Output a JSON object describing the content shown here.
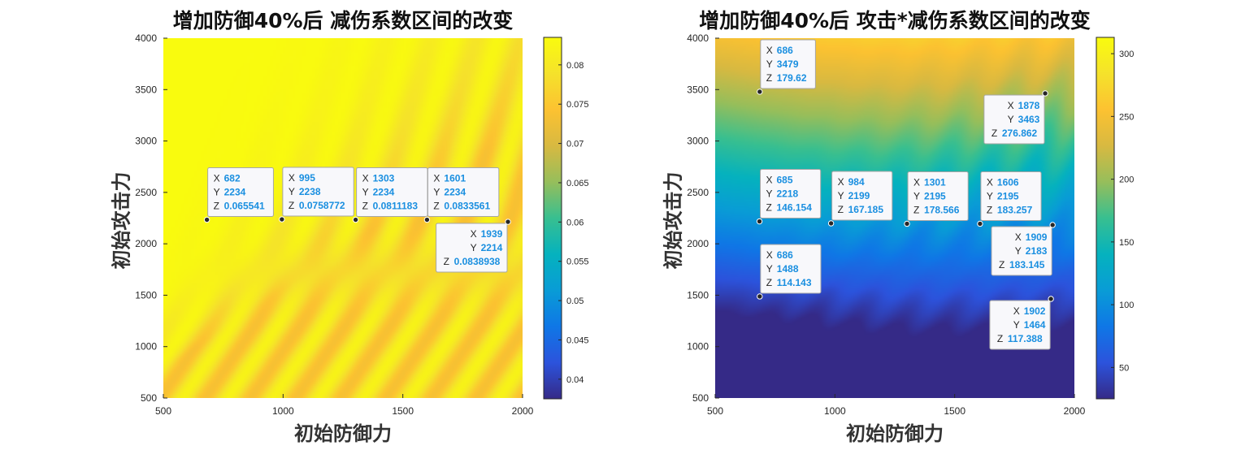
{
  "chart_data": [
    {
      "type": "heatmap",
      "title": "增加防御40%后 减伤系数区间的改变",
      "xlabel": "初始防御力",
      "ylabel": "初始攻击力",
      "xlim": [
        500,
        2000
      ],
      "ylim": [
        500,
        4000
      ],
      "xticks": [
        "500",
        "1000",
        "1500",
        "2000"
      ],
      "yticks": [
        "500",
        "1000",
        "1500",
        "2000",
        "2500",
        "3000",
        "3500",
        "4000"
      ],
      "colorbar": {
        "min": 0.0375,
        "max": 0.0835,
        "ticks": [
          "0.04",
          "0.045",
          "0.05",
          "0.055",
          "0.06",
          "0.065",
          "0.07",
          "0.075",
          "0.08"
        ]
      },
      "datatips": [
        {
          "x": "682",
          "y": "2234",
          "z": "0.065541",
          "tip_side": "right"
        },
        {
          "x": "995",
          "y": "2238",
          "z": "0.0758772",
          "tip_side": "right"
        },
        {
          "x": "1303",
          "y": "2234",
          "z": "0.0811183",
          "tip_side": "right"
        },
        {
          "x": "1601",
          "y": "2234",
          "z": "0.0833561",
          "tip_side": "right"
        },
        {
          "x": "1939",
          "y": "2214",
          "z": "0.0838938",
          "tip_side": "left"
        }
      ]
    },
    {
      "type": "heatmap",
      "title": "增加防御40%后 攻击*减伤系数区间的改变",
      "xlabel": "初始防御力",
      "ylabel": "初始攻击力",
      "xlim": [
        500,
        2000
      ],
      "ylim": [
        500,
        4000
      ],
      "xticks": [
        "500",
        "1000",
        "1500",
        "2000"
      ],
      "yticks": [
        "500",
        "1000",
        "1500",
        "2000",
        "2500",
        "3000",
        "3500",
        "4000"
      ],
      "colorbar": {
        "min": 25,
        "max": 313,
        "ticks": [
          "50",
          "100",
          "150",
          "200",
          "250",
          "300"
        ]
      },
      "datatips": [
        {
          "x": "686",
          "y": "3479",
          "z": "179.62",
          "tip_side": "right"
        },
        {
          "x": "1878",
          "y": "3463",
          "z": "276.862",
          "tip_side": "left"
        },
        {
          "x": "685",
          "y": "2218",
          "z": "146.154",
          "tip_side": "right"
        },
        {
          "x": "984",
          "y": "2199",
          "z": "167.185",
          "tip_side": "right"
        },
        {
          "x": "1301",
          "y": "2195",
          "z": "178.566",
          "tip_side": "right"
        },
        {
          "x": "1606",
          "y": "2195",
          "z": "183.257",
          "tip_side": "right"
        },
        {
          "x": "1909",
          "y": "2183",
          "z": "183.145",
          "tip_side": "left"
        },
        {
          "x": "686",
          "y": "1488",
          "z": "114.143",
          "tip_side": "right"
        },
        {
          "x": "1902",
          "y": "1464",
          "z": "117.388",
          "tip_side": "left"
        }
      ]
    }
  ],
  "colors": {
    "parula": [
      "#352a87",
      "#2c53dc",
      "#0f77e6",
      "#099cd6",
      "#05b2be",
      "#38bf90",
      "#96be5b",
      "#d8b941",
      "#fcc231",
      "#f5e22b",
      "#f9fb0e"
    ],
    "tip_value": "#1a8fe0",
    "tip_key": "#262626",
    "tip_border": "#a6a6a6",
    "tip_fill": "#f8f8fb"
  }
}
